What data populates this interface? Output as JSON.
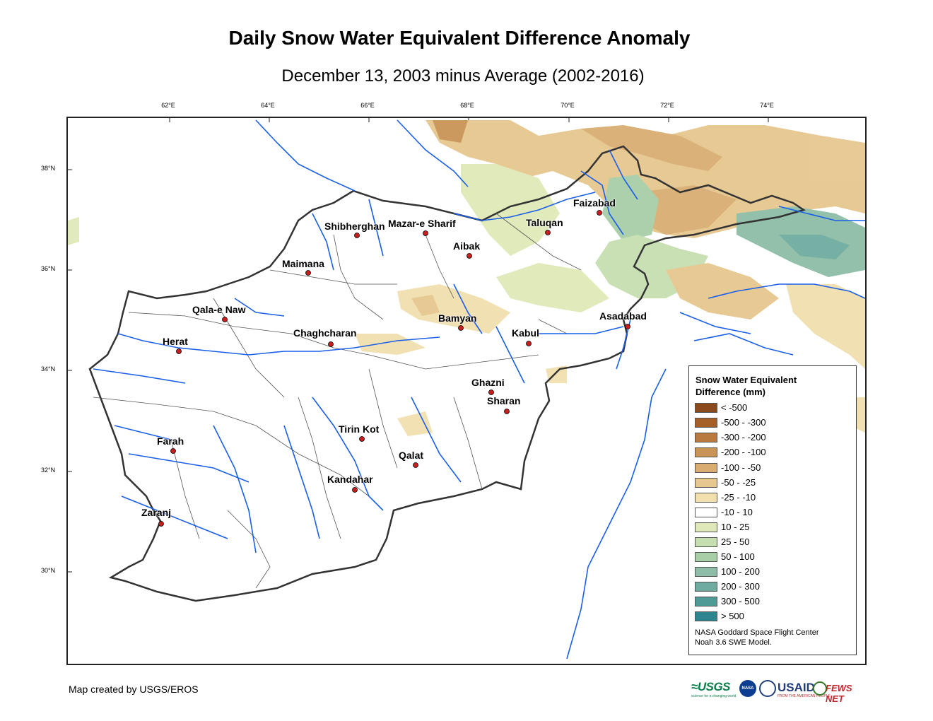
{
  "title": "Daily Snow Water Equivalent Difference Anomaly",
  "subtitle": "December 13, 2003 minus Average (2002-2016)",
  "longitude_ticks": [
    "62°E",
    "64°E",
    "66°E",
    "68°E",
    "70°E",
    "72°E",
    "74°E"
  ],
  "latitude_ticks": [
    "38°N",
    "36°N",
    "34°N",
    "32°N",
    "30°N"
  ],
  "cities": [
    {
      "name": "Faizabad"
    },
    {
      "name": "Shibherghan"
    },
    {
      "name": "Mazar-e Sharif"
    },
    {
      "name": "Taluqan"
    },
    {
      "name": "Aibak"
    },
    {
      "name": "Maimana"
    },
    {
      "name": "Qala-e Naw"
    },
    {
      "name": "Bamyan"
    },
    {
      "name": "Asadabad"
    },
    {
      "name": "Herat"
    },
    {
      "name": "Chaghcharan"
    },
    {
      "name": "Kabul"
    },
    {
      "name": "Ghazni"
    },
    {
      "name": "Sharan"
    },
    {
      "name": "Tirin Kot"
    },
    {
      "name": "Farah"
    },
    {
      "name": "Qalat"
    },
    {
      "name": "Kandahar"
    },
    {
      "name": "Zaranj"
    }
  ],
  "legend": {
    "title": "Snow Water Equivalent Difference (mm)",
    "items": [
      {
        "label": "< -500",
        "color": "#8b4a1c"
      },
      {
        "label": "-500 - -300",
        "color": "#a5602a"
      },
      {
        "label": "-300 - -200",
        "color": "#b97a3f"
      },
      {
        "label": "-200 - -100",
        "color": "#c99455"
      },
      {
        "label": "-100 - -50",
        "color": "#d9ad72"
      },
      {
        "label": "-50 - -25",
        "color": "#e6c78f"
      },
      {
        "label": "-25 - -10",
        "color": "#f1dfae"
      },
      {
        "label": "-10 - 10",
        "color": "#ffffff"
      },
      {
        "label": "10 - 25",
        "color": "#dfe9b8"
      },
      {
        "label": "25 - 50",
        "color": "#c6dfb0"
      },
      {
        "label": "50 - 100",
        "color": "#a8cea8"
      },
      {
        "label": "100 - 200",
        "color": "#8dbda6"
      },
      {
        "label": "200 - 300",
        "color": "#6fab9f"
      },
      {
        "label": "300 - 500",
        "color": "#4f9997"
      },
      {
        "label": "> 500",
        "color": "#2e8590"
      }
    ],
    "credit_line1": "NASA Goddard Space Flight Center",
    "credit_line2": "Noah 3.6 SWE Model."
  },
  "footer": {
    "map_credit": "Map created by USGS/EROS",
    "logo_usgs": "≈USGS",
    "logo_usgs_tagline": "science for a changing world",
    "logo_nasa": "NASA",
    "logo_usaid": "USAID",
    "logo_usaid_tagline": "FROM THE AMERICAN PEOPLE",
    "logo_fews": "FEWS NET"
  }
}
